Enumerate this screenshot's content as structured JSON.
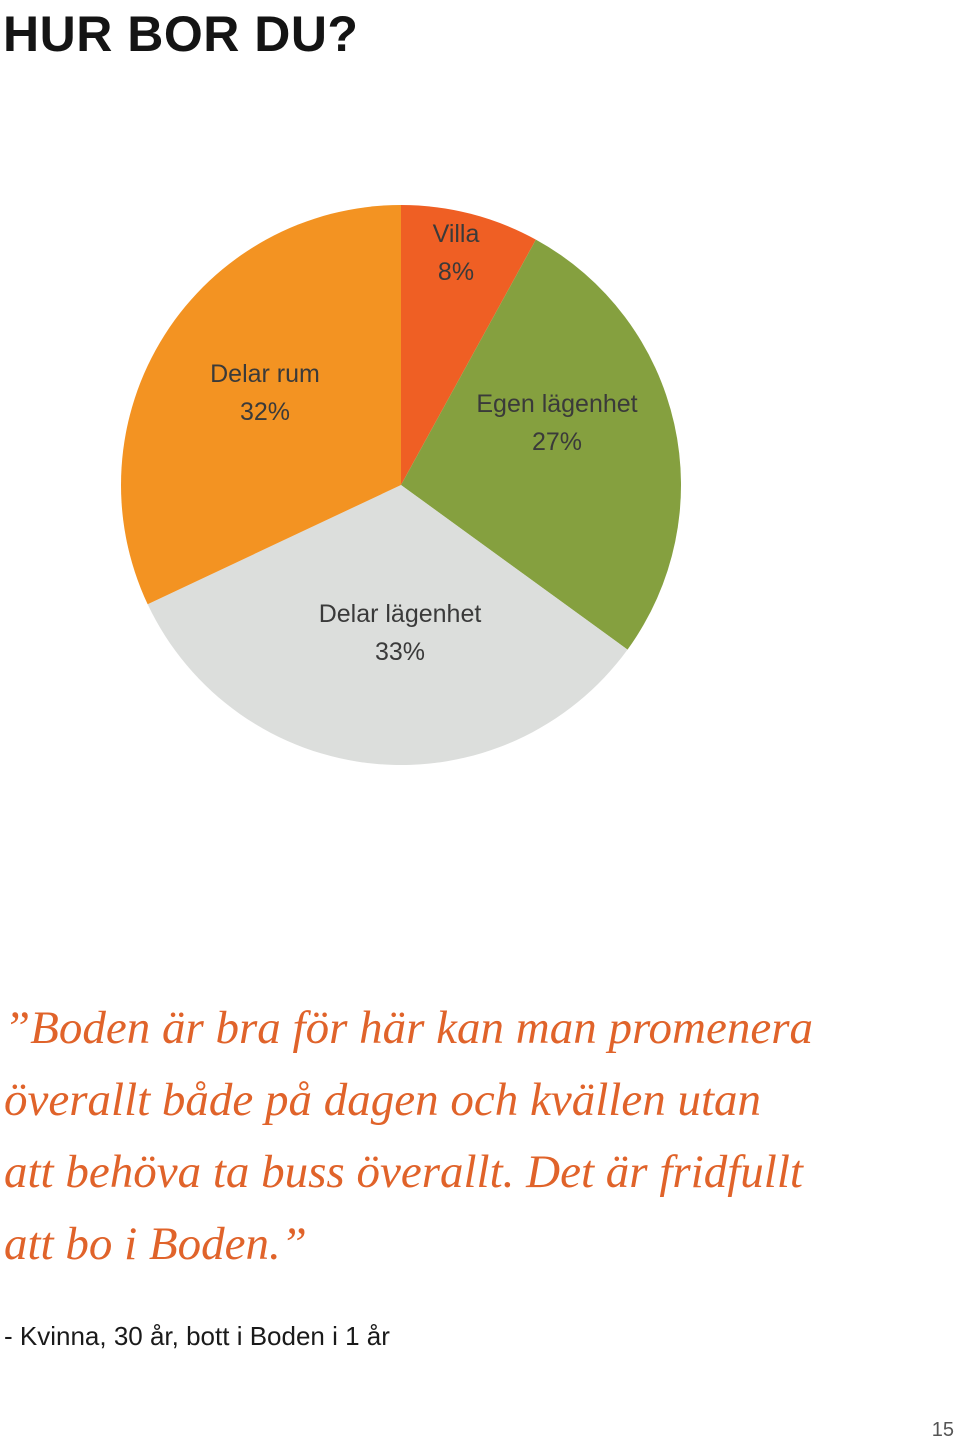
{
  "page": {
    "title": "HUR BOR DU?",
    "page_number": "15"
  },
  "chart_data": {
    "type": "pie",
    "slices": [
      {
        "label": "Villa",
        "value": 8,
        "value_label": "8%",
        "color": "#ef5f24"
      },
      {
        "label": "Egen lägenhet",
        "value": 27,
        "value_label": "27%",
        "color": "#85a03f"
      },
      {
        "label": "Delar lägenhet",
        "value": 33,
        "value_label": "33%",
        "color": "#dcdedc"
      },
      {
        "label": "Delar rum",
        "value": 32,
        "value_label": "32%",
        "color": "#f39322"
      }
    ]
  },
  "quote": {
    "lines": [
      "”Boden är bra för här kan man promenera",
      "överallt både på dagen och kvällen utan",
      "att behöva ta buss överallt. Det är fridfullt",
      "att bo i Boden.”"
    ],
    "attribution": "- Kvinna, 30 år, bott i Boden i 1 år",
    "color": "#e0632a"
  }
}
